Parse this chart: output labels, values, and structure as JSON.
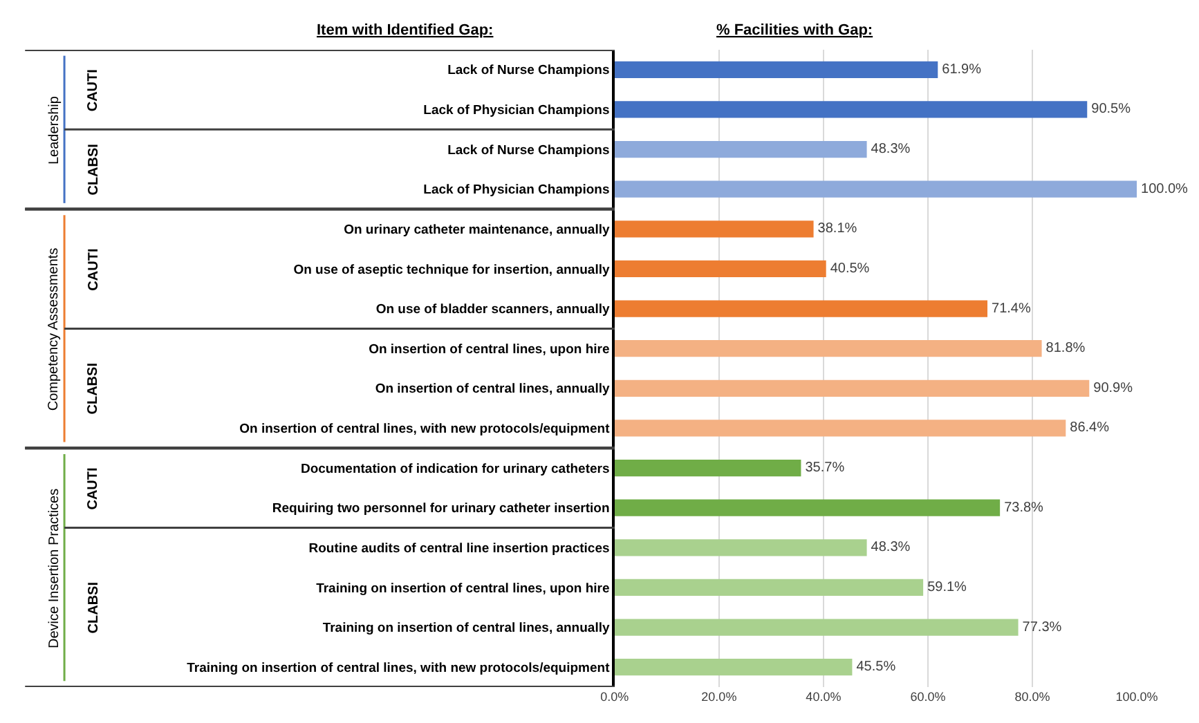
{
  "chart_data": {
    "type": "bar",
    "orientation": "horizontal",
    "title": "% Facilities with Gap:",
    "ylabel": "Item with Identified Gap:",
    "categories": [
      "Lack of Nurse Champions",
      "Lack of Physician Champions",
      "Lack of Nurse Champions",
      "Lack of Physician Champions",
      "On urinary catheter maintenance, annually",
      "On use of aseptic technique for insertion, annually",
      "On use of bladder scanners, annually",
      "On insertion of central lines, upon hire",
      "On insertion of central lines, annually",
      "On insertion of central lines, with new protocols/equipment",
      "Documentation of indication for urinary catheters",
      "Requiring two personnel for urinary catheter insertion",
      "Routine audits of central line insertion practices",
      "Training on insertion of central lines, upon hire",
      "Training on insertion of central lines, annually",
      "Training on insertion of central lines, with new protocols/equipment"
    ],
    "values": [
      61.9,
      90.5,
      48.3,
      100.0,
      38.1,
      40.5,
      71.4,
      81.8,
      90.9,
      86.4,
      35.7,
      73.8,
      48.3,
      59.1,
      77.3,
      45.5
    ],
    "value_labels": [
      "61.9%",
      "90.5%",
      "48.3%",
      "100.0%",
      "38.1%",
      "40.5%",
      "71.4%",
      "81.8%",
      "90.9%",
      "86.4%",
      "35.7%",
      "73.8%",
      "48.3%",
      "59.1%",
      "77.3%",
      "45.5%"
    ],
    "colors": [
      "#4472c4",
      "#4472c4",
      "#8eaadb",
      "#8eaadb",
      "#ed7d31",
      "#ed7d31",
      "#ed7d31",
      "#f4b183",
      "#f4b183",
      "#f4b183",
      "#70ad47",
      "#70ad47",
      "#a9d18e",
      "#a9d18e",
      "#a9d18e",
      "#a9d18e"
    ],
    "xlim": [
      0,
      100
    ],
    "xticks": [
      {
        "value": 0,
        "label": "0.0%"
      },
      {
        "value": 20,
        "label": "20.0%"
      },
      {
        "value": 40,
        "label": "40.0%"
      },
      {
        "value": 60,
        "label": "60.0%"
      },
      {
        "value": 80,
        "label": "80.0%"
      },
      {
        "value": 100,
        "label": "100.0%"
      }
    ],
    "grid": "x",
    "annotations": [
      "Leadership",
      "CAUTI",
      "CLABSI",
      "Competency Assessments",
      "CAUTI",
      "CLABSI",
      "Device Insertion Practices",
      "CAUTI",
      "CLABSI"
    ]
  }
}
